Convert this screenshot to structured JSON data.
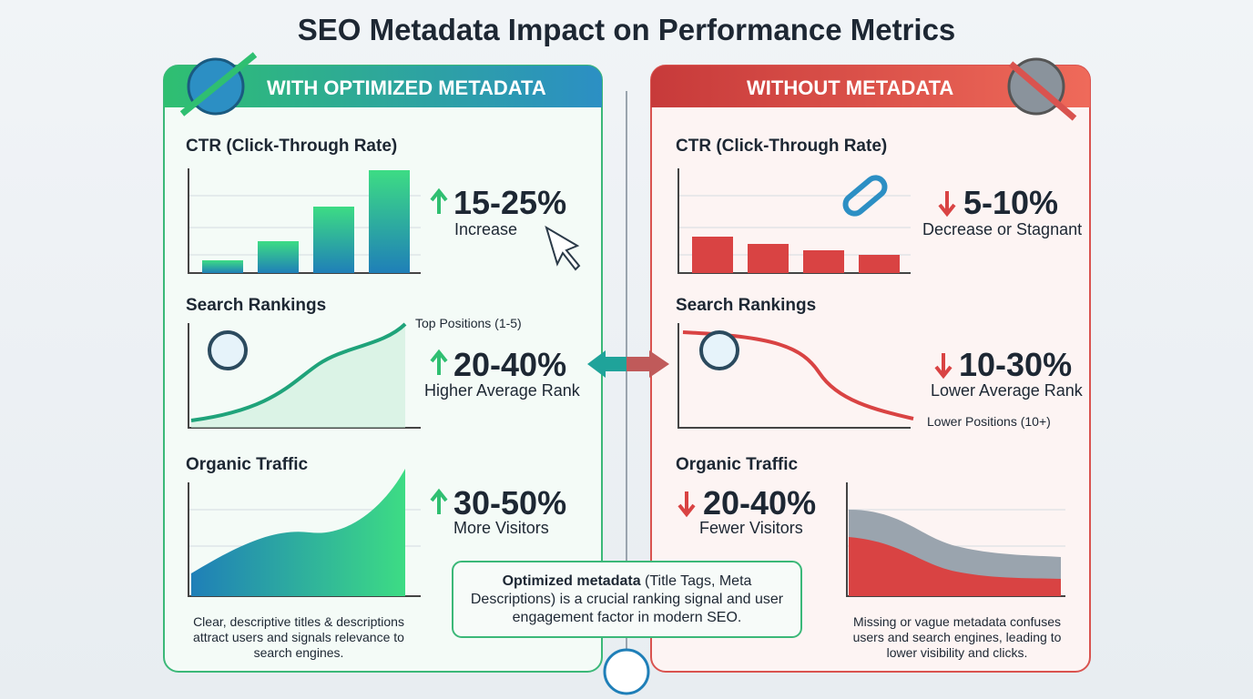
{
  "title": "SEO Metadata Impact on Performance Metrics",
  "left": {
    "header": "WITH OPTIMIZED METADATA",
    "ctr": {
      "label": "CTR (Click-Through Rate)",
      "stat": "15-25%",
      "caption": "Increase"
    },
    "rankings": {
      "label": "Search Rankings",
      "annotation": "Top Positions (1-5)",
      "stat": "20-40%",
      "caption": "Higher Average Rank"
    },
    "traffic": {
      "label": "Organic Traffic",
      "stat": "30-50%",
      "caption": "More Visitors"
    },
    "footer": "Clear, descriptive titles & descriptions attract users and signals relevance to search engines."
  },
  "right": {
    "header": "WITHOUT METADATA",
    "ctr": {
      "label": "CTR (Click-Through Rate)",
      "stat": "5-10%",
      "caption": "Decrease or Stagnant"
    },
    "rankings": {
      "label": "Search Rankings",
      "annotation": "Lower Positions (10+)",
      "stat": "10-30%",
      "caption": "Lower Average Rank"
    },
    "traffic": {
      "label": "Organic Traffic",
      "stat": "20-40%",
      "caption": "Fewer Visitors"
    },
    "footer": "Missing or vague metadata confuses users and search engines, leading to lower visibility and clicks."
  },
  "note": {
    "bold": "Optimized metadata",
    "text": " (Title Tags, Meta Descriptions) is a crucial ranking signal and user engagement factor in modern SEO."
  }
}
